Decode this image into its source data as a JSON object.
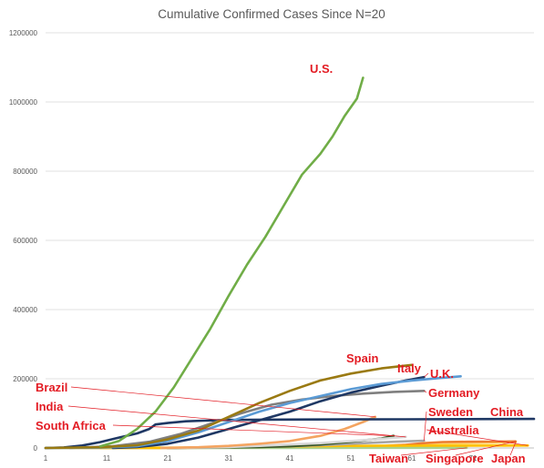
{
  "chart_data": {
    "type": "line",
    "title": "Cumulative Confirmed Cases Since N=20",
    "xlabel": "",
    "ylabel": "",
    "xlim": [
      1,
      81
    ],
    "ylim": [
      0,
      1200000
    ],
    "x_ticks": [
      1,
      11,
      21,
      31,
      41,
      51,
      61,
      71
    ],
    "x_tick_labels": [
      "1",
      "11",
      "21",
      "31",
      "41",
      "51",
      "61",
      "71"
    ],
    "y_ticks": [
      0,
      200000,
      400000,
      600000,
      800000,
      1000000,
      1200000
    ],
    "y_tick_labels": [
      "0",
      "200000",
      "400000",
      "600000",
      "800000",
      "1000000",
      "1200000"
    ],
    "grid": "horizontal",
    "legend": "none",
    "series": [
      {
        "name": "U.S.",
        "color": "#70ad47",
        "points": [
          [
            10,
            5000
          ],
          [
            13,
            20000
          ],
          [
            16,
            55000
          ],
          [
            19,
            105000
          ],
          [
            22,
            175000
          ],
          [
            25,
            260000
          ],
          [
            28,
            345000
          ],
          [
            31,
            440000
          ],
          [
            34,
            530000
          ],
          [
            37,
            610000
          ],
          [
            40,
            700000
          ],
          [
            43,
            790000
          ],
          [
            46,
            850000
          ],
          [
            48,
            900000
          ],
          [
            50,
            960000
          ],
          [
            52,
            1010000
          ],
          [
            53,
            1070000
          ]
        ]
      },
      {
        "name": "Spain",
        "color": "#9a7a12",
        "points": [
          [
            1,
            0
          ],
          [
            10,
            2000
          ],
          [
            16,
            8000
          ],
          [
            21,
            25000
          ],
          [
            26,
            50000
          ],
          [
            31,
            90000
          ],
          [
            36,
            130000
          ],
          [
            41,
            165000
          ],
          [
            46,
            195000
          ],
          [
            51,
            215000
          ],
          [
            56,
            230000
          ],
          [
            61,
            240000
          ]
        ]
      },
      {
        "name": "Italy",
        "color": "#5b9bd5",
        "points": [
          [
            1,
            0
          ],
          [
            10,
            1000
          ],
          [
            16,
            5000
          ],
          [
            21,
            20000
          ],
          [
            26,
            45000
          ],
          [
            31,
            75000
          ],
          [
            36,
            105000
          ],
          [
            41,
            130000
          ],
          [
            46,
            150000
          ],
          [
            51,
            170000
          ],
          [
            56,
            185000
          ],
          [
            61,
            195000
          ],
          [
            66,
            203000
          ],
          [
            69,
            207000
          ]
        ]
      },
      {
        "name": "U.K.",
        "color": "#1f3864",
        "points": [
          [
            12,
            0
          ],
          [
            16,
            3000
          ],
          [
            21,
            12000
          ],
          [
            26,
            30000
          ],
          [
            31,
            55000
          ],
          [
            36,
            80000
          ],
          [
            41,
            105000
          ],
          [
            46,
            135000
          ],
          [
            51,
            160000
          ],
          [
            56,
            180000
          ],
          [
            60,
            195000
          ],
          [
            63,
            205000
          ]
        ]
      },
      {
        "name": "Germany",
        "color": "#7f7f7f",
        "points": [
          [
            5,
            0
          ],
          [
            12,
            5000
          ],
          [
            18,
            18000
          ],
          [
            23,
            40000
          ],
          [
            28,
            70000
          ],
          [
            33,
            100000
          ],
          [
            38,
            125000
          ],
          [
            43,
            140000
          ],
          [
            48,
            150000
          ],
          [
            53,
            157000
          ],
          [
            58,
            162000
          ],
          [
            63,
            165000
          ]
        ]
      },
      {
        "name": "China",
        "color": "#1f3864",
        "points": [
          [
            1,
            0
          ],
          [
            4,
            1500
          ],
          [
            7,
            7000
          ],
          [
            10,
            17000
          ],
          [
            13,
            30000
          ],
          [
            16,
            42000
          ],
          [
            18,
            55000
          ],
          [
            19,
            68000
          ],
          [
            21,
            72000
          ],
          [
            24,
            77000
          ],
          [
            27,
            79000
          ],
          [
            31,
            81000
          ],
          [
            40,
            82000
          ],
          [
            50,
            82500
          ],
          [
            60,
            83000
          ],
          [
            70,
            83500
          ],
          [
            81,
            84000
          ]
        ]
      },
      {
        "name": "Brazil",
        "color": "#f4a460",
        "points": [
          [
            20,
            0
          ],
          [
            26,
            2000
          ],
          [
            31,
            6000
          ],
          [
            36,
            12000
          ],
          [
            41,
            20000
          ],
          [
            46,
            35000
          ],
          [
            50,
            55000
          ],
          [
            53,
            75000
          ],
          [
            55,
            90000
          ]
        ]
      },
      {
        "name": "India",
        "color": "#d9d9d9",
        "points": [
          [
            20,
            0
          ],
          [
            26,
            1000
          ],
          [
            31,
            3000
          ],
          [
            36,
            6000
          ],
          [
            41,
            10000
          ],
          [
            46,
            14000
          ],
          [
            51,
            20000
          ],
          [
            56,
            26000
          ],
          [
            60,
            32000
          ]
        ]
      },
      {
        "name": "South Africa",
        "color": "#375623",
        "points": [
          [
            21,
            0
          ],
          [
            26,
            1000
          ],
          [
            31,
            1800
          ],
          [
            36,
            3000
          ],
          [
            41,
            5000
          ],
          [
            46,
            10000
          ],
          [
            51,
            18000
          ],
          [
            56,
            27000
          ],
          [
            58,
            35000
          ]
        ]
      },
      {
        "name": "Sweden",
        "color": "#a5a5a5",
        "points": [
          [
            22,
            0
          ],
          [
            28,
            1000
          ],
          [
            34,
            2000
          ],
          [
            40,
            4000
          ],
          [
            46,
            8000
          ],
          [
            52,
            13000
          ],
          [
            58,
            18000
          ],
          [
            63,
            21000
          ]
        ]
      },
      {
        "name": "Australia",
        "color": "#ffc000",
        "points": [
          [
            10,
            0
          ],
          [
            20,
            200
          ],
          [
            30,
            1500
          ],
          [
            40,
            4000
          ],
          [
            50,
            6000
          ],
          [
            60,
            6700
          ],
          [
            70,
            6900
          ],
          [
            80,
            7000
          ]
        ]
      },
      {
        "name": "Taiwan",
        "color": "#a9d18e",
        "points": [
          [
            1,
            0
          ],
          [
            20,
            100
          ],
          [
            40,
            300
          ],
          [
            60,
            400
          ],
          [
            70,
            430
          ]
        ]
      },
      {
        "name": "Singapore",
        "color": "#ed7d31",
        "points": [
          [
            1,
            0
          ],
          [
            20,
            300
          ],
          [
            40,
            1000
          ],
          [
            50,
            2000
          ],
          [
            56,
            5000
          ],
          [
            60,
            9000
          ],
          [
            63,
            14000
          ],
          [
            66,
            17000
          ],
          [
            70,
            18000
          ],
          [
            75,
            18500
          ],
          [
            78,
            19000
          ]
        ]
      },
      {
        "name": "Japan",
        "color": "#ffd966",
        "points": [
          [
            1,
            0
          ],
          [
            20,
            1000
          ],
          [
            40,
            2500
          ],
          [
            55,
            6000
          ],
          [
            62,
            10000
          ],
          [
            68,
            13500
          ],
          [
            73,
            15000
          ],
          [
            78,
            16000
          ]
        ]
      }
    ],
    "annotations": [
      {
        "text": "U.S.",
        "series": "U.S."
      },
      {
        "text": "Spain",
        "series": "Spain"
      },
      {
        "text": "Italy",
        "series": "Italy"
      },
      {
        "text": "U.K.",
        "series": "U.K."
      },
      {
        "text": "Germany",
        "series": "Germany"
      },
      {
        "text": "Brazil",
        "series": "Brazil"
      },
      {
        "text": "India",
        "series": "India"
      },
      {
        "text": "South Africa",
        "series": "South Africa"
      },
      {
        "text": "Sweden",
        "series": "Sweden"
      },
      {
        "text": "China",
        "series": "China"
      },
      {
        "text": "Australia",
        "series": "Australia"
      },
      {
        "text": "Taiwan",
        "series": "Taiwan"
      },
      {
        "text": "Singapore",
        "series": "Singapore"
      },
      {
        "text": "Japan",
        "series": "Japan"
      }
    ],
    "annotation_color": "#e31b23"
  }
}
